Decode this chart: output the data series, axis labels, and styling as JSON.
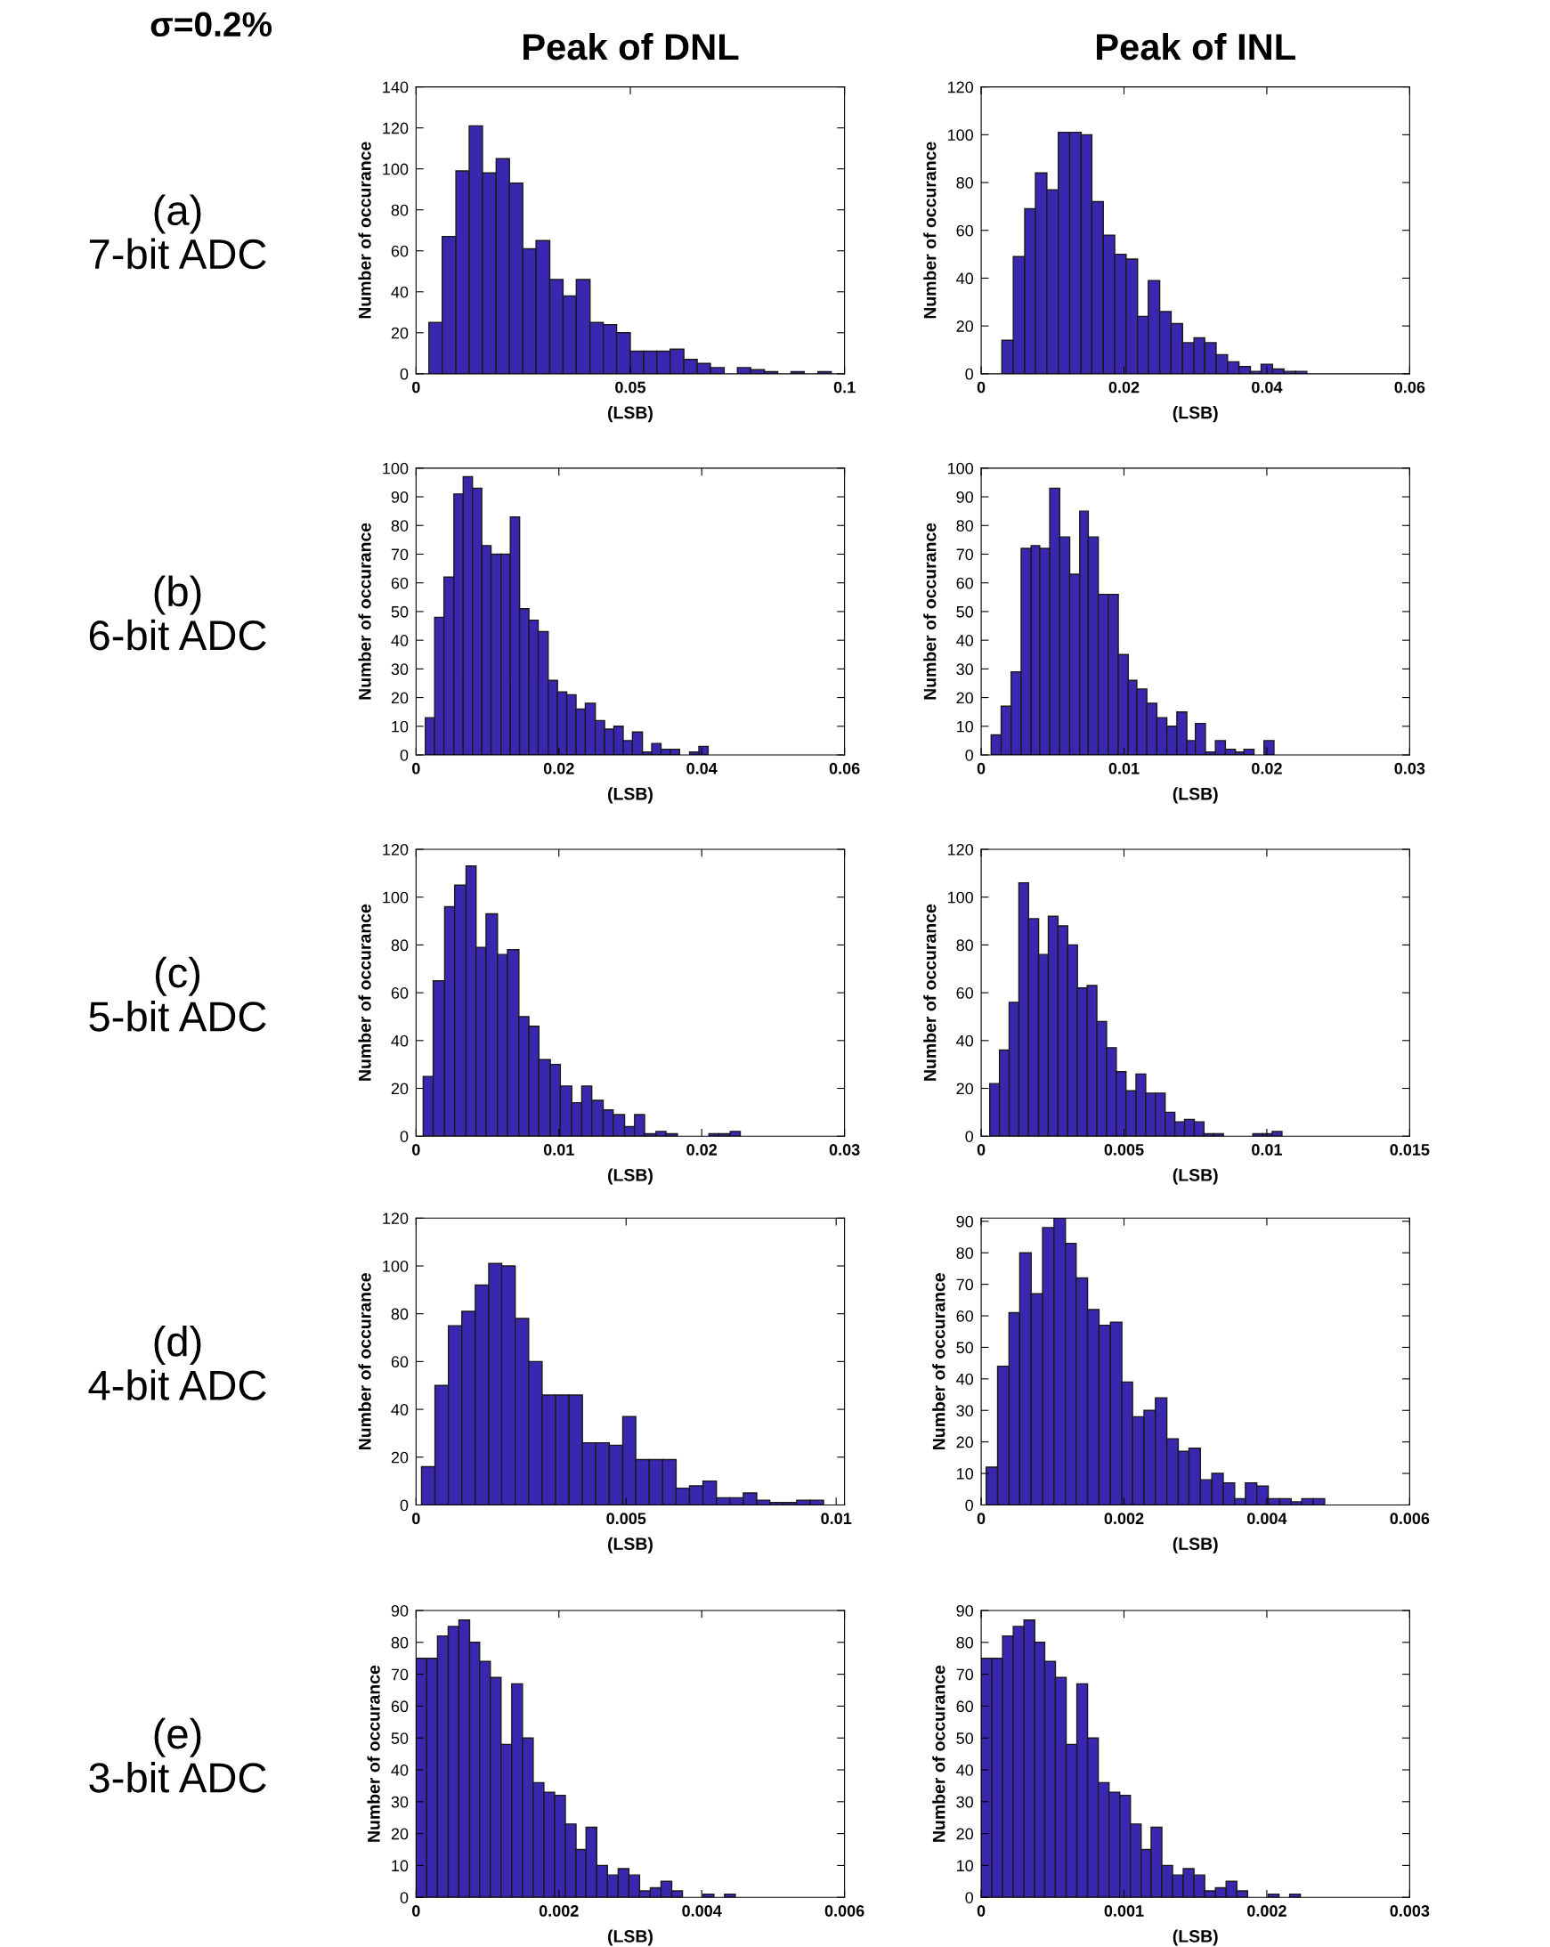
{
  "chart_data": [
    {
      "type": "histogram",
      "title": "Peak of DNL",
      "subtitle": "σ=0.2%",
      "annotations": [
        "(a)\n7-bit ADC"
      ],
      "xlabel": "(LSB)",
      "ylabel": "Number of occurance",
      "color": "#3a27b0",
      "bins": [
        0.003,
        0.0061,
        0.0093,
        0.0124,
        0.0155,
        0.0187,
        0.0218,
        0.0249,
        0.028,
        0.0312,
        0.0343,
        0.0374,
        0.0406,
        0.0437,
        0.0468,
        0.05,
        0.0531,
        0.0562,
        0.0593,
        0.0625,
        0.0656,
        0.0687,
        0.0719,
        0.075,
        0.0781,
        0.0813,
        0.0844,
        0.0875,
        0.0906,
        0.0938,
        0.0969
      ],
      "values": [
        25,
        67,
        99,
        121,
        98,
        105,
        93,
        61,
        65,
        46,
        38,
        46,
        25,
        24,
        20,
        11,
        11,
        11,
        12,
        7,
        5,
        3,
        0,
        3,
        2,
        1,
        0,
        1,
        0,
        1
      ],
      "xlim": [
        0,
        0.1
      ],
      "xticks": [
        0,
        0.05,
        0.1
      ],
      "ylim": [
        0,
        140
      ],
      "yticks": [
        0,
        20,
        40,
        60,
        80,
        100,
        120,
        140
      ],
      "grid": false
    },
    {
      "type": "histogram",
      "title": "Peak of INL",
      "xlabel": "(LSB)",
      "ylabel": "Number of occurance",
      "color": "#3a27b0",
      "bins": [
        0.0029,
        0.0045,
        0.0061,
        0.0076,
        0.0092,
        0.0108,
        0.0124,
        0.014,
        0.0155,
        0.0171,
        0.0187,
        0.0203,
        0.0219,
        0.0234,
        0.025,
        0.0266,
        0.0282,
        0.0298,
        0.0313,
        0.0329,
        0.0345,
        0.0361,
        0.0377,
        0.0392,
        0.0408,
        0.0424,
        0.044,
        0.0456
      ],
      "values": [
        14,
        49,
        69,
        84,
        77,
        101,
        101,
        100,
        72,
        58,
        50,
        48,
        24,
        39,
        26,
        21,
        13,
        15,
        13,
        8,
        5,
        3,
        1,
        4,
        2,
        1,
        1
      ],
      "xlim": [
        0,
        0.06
      ],
      "xticks": [
        0,
        0.02,
        0.04,
        0.06
      ],
      "ylim": [
        0,
        120
      ],
      "yticks": [
        0,
        20,
        40,
        60,
        80,
        100,
        120
      ],
      "grid": false
    },
    {
      "type": "histogram",
      "annotations": [
        "(b)\n6-bit ADC"
      ],
      "xlabel": "(LSB)",
      "ylabel": "Number of occurance",
      "color": "#3a27b0",
      "bins": [
        0.0013,
        0.0026,
        0.0039,
        0.0053,
        0.0066,
        0.0079,
        0.0092,
        0.0105,
        0.0119,
        0.0132,
        0.0145,
        0.0158,
        0.0171,
        0.0185,
        0.0198,
        0.0211,
        0.0224,
        0.0237,
        0.0251,
        0.0264,
        0.0277,
        0.029,
        0.0303,
        0.0317,
        0.033,
        0.0343,
        0.0356,
        0.0369,
        0.0383,
        0.0396,
        0.0409
      ],
      "values": [
        13,
        48,
        62,
        91,
        97,
        93,
        73,
        70,
        70,
        83,
        51,
        47,
        43,
        26,
        22,
        21,
        16,
        18,
        12,
        9,
        10,
        5,
        8,
        1,
        4,
        2,
        2,
        0,
        1,
        3
      ],
      "xlim": [
        0,
        0.06
      ],
      "xticks": [
        0,
        0.02,
        0.04,
        0.06
      ],
      "ylim": [
        0,
        100
      ],
      "yticks": [
        0,
        10,
        20,
        30,
        40,
        50,
        60,
        70,
        80,
        90,
        100
      ],
      "grid": false
    },
    {
      "type": "histogram",
      "xlabel": "(LSB)",
      "ylabel": "Number of occurance",
      "color": "#3a27b0",
      "bins": [
        0.0007,
        0.0014,
        0.0021,
        0.0028,
        0.0035,
        0.0041,
        0.0048,
        0.0055,
        0.0062,
        0.0069,
        0.0075,
        0.0082,
        0.0089,
        0.0096,
        0.0103,
        0.0109,
        0.0116,
        0.0123,
        0.013,
        0.0137,
        0.0144,
        0.015,
        0.0157,
        0.0164,
        0.0171,
        0.0178,
        0.0184,
        0.0191,
        0.0198,
        0.0205
      ],
      "values": [
        7,
        17,
        29,
        72,
        73,
        72,
        93,
        76,
        63,
        85,
        76,
        56,
        56,
        35,
        26,
        23,
        18,
        13,
        10,
        15,
        5,
        11,
        1,
        5,
        2,
        1,
        2,
        0,
        5
      ],
      "xlim": [
        0,
        0.03
      ],
      "xticks": [
        0,
        0.01,
        0.02,
        0.03
      ],
      "ylim": [
        0,
        100
      ],
      "yticks": [
        0,
        10,
        20,
        30,
        40,
        50,
        60,
        70,
        80,
        90,
        100
      ],
      "grid": false
    },
    {
      "type": "histogram",
      "annotations": [
        "(c)\n5-bit ADC"
      ],
      "xlabel": "(LSB)",
      "ylabel": "Number of occurance",
      "color": "#3a27b0",
      "bins": [
        0.0005,
        0.0012,
        0.002,
        0.0027,
        0.0035,
        0.0042,
        0.0049,
        0.0057,
        0.0064,
        0.0072,
        0.0079,
        0.0086,
        0.0094,
        0.0101,
        0.0109,
        0.0116,
        0.0123,
        0.0131,
        0.0138,
        0.0146,
        0.0153,
        0.016,
        0.0168,
        0.0175,
        0.0183,
        0.0205,
        0.0212,
        0.022,
        0.0227
      ],
      "values": [
        25,
        65,
        96,
        105,
        113,
        79,
        93,
        76,
        78,
        50,
        46,
        32,
        30,
        21,
        14,
        21,
        15,
        11,
        9,
        4,
        9,
        1,
        2,
        1,
        0,
        1,
        1,
        2
      ],
      "xlim": [
        0,
        0.03
      ],
      "xticks": [
        0,
        0.01,
        0.02,
        0.03
      ],
      "ylim": [
        0,
        120
      ],
      "yticks": [
        0,
        20,
        40,
        60,
        80,
        100,
        120
      ],
      "grid": false
    },
    {
      "type": "histogram",
      "xlabel": "(LSB)",
      "ylabel": "Number of occurance",
      "color": "#3a27b0",
      "bins": [
        0.0003,
        0.00064,
        0.00098,
        0.00132,
        0.00166,
        0.00201,
        0.00235,
        0.00269,
        0.00303,
        0.00337,
        0.00371,
        0.00405,
        0.00439,
        0.00473,
        0.00507,
        0.00542,
        0.00576,
        0.0061,
        0.00644,
        0.00678,
        0.00712,
        0.00746,
        0.0078,
        0.00814,
        0.00848,
        0.00951,
        0.00985,
        0.01019,
        0.01053
      ],
      "values": [
        22,
        36,
        56,
        106,
        91,
        76,
        92,
        88,
        80,
        62,
        63,
        48,
        37,
        27,
        19,
        26,
        18,
        18,
        10,
        6,
        7,
        6,
        1,
        1,
        0,
        1,
        1,
        2
      ],
      "xlim": [
        0,
        0.015
      ],
      "xticks": [
        0,
        0.005,
        0.01,
        0.015
      ],
      "ylim": [
        0,
        120
      ],
      "yticks": [
        0,
        20,
        40,
        60,
        80,
        100,
        120
      ],
      "grid": false
    },
    {
      "type": "histogram",
      "annotations": [
        "(d)\n4-bit ADC"
      ],
      "xlabel": "(LSB)",
      "ylabel": "Number of occurance",
      "color": "#3a27b0",
      "bins": [
        0.00013,
        0.00045,
        0.00077,
        0.00109,
        0.00141,
        0.00173,
        0.00204,
        0.00236,
        0.00268,
        0.003,
        0.00332,
        0.00364,
        0.00396,
        0.00428,
        0.0046,
        0.00492,
        0.00523,
        0.00555,
        0.00587,
        0.00619,
        0.00651,
        0.00683,
        0.00715,
        0.00747,
        0.00779,
        0.00811,
        0.00842,
        0.00874,
        0.00906,
        0.00938,
        0.0097
      ],
      "values": [
        16,
        50,
        75,
        81,
        92,
        101,
        100,
        78,
        60,
        46,
        46,
        46,
        26,
        26,
        25,
        37,
        19,
        19,
        19,
        7,
        8,
        10,
        3,
        3,
        5,
        2,
        1,
        1,
        2,
        2
      ],
      "xlim": [
        0,
        0.0102
      ],
      "xticks": [
        0,
        0.005,
        0.01
      ],
      "ylim": [
        0,
        120
      ],
      "yticks": [
        0,
        20,
        40,
        60,
        80,
        100,
        120
      ],
      "grid": false
    },
    {
      "type": "histogram",
      "xlabel": "(LSB)",
      "ylabel": "Number of occurance",
      "color": "#3a27b0",
      "bins": [
        7e-05,
        0.00023,
        0.00039,
        0.00054,
        0.0007,
        0.00086,
        0.00102,
        0.00118,
        0.00133,
        0.00149,
        0.00165,
        0.00181,
        0.00197,
        0.00212,
        0.00228,
        0.00244,
        0.0026,
        0.00276,
        0.00291,
        0.00307,
        0.00323,
        0.00339,
        0.00355,
        0.0037,
        0.00386,
        0.00402,
        0.00418,
        0.00434,
        0.00449,
        0.00465,
        0.00481
      ],
      "values": [
        12,
        44,
        61,
        80,
        67,
        88,
        91,
        83,
        72,
        62,
        57,
        58,
        39,
        28,
        30,
        34,
        21,
        17,
        18,
        8,
        10,
        7,
        2,
        7,
        6,
        2,
        2,
        1,
        2,
        2
      ],
      "xlim": [
        0,
        0.006
      ],
      "xticks": [
        0,
        0.002,
        0.004,
        0.006
      ],
      "ylim": [
        0,
        91
      ],
      "yticks": [
        0,
        10,
        20,
        30,
        40,
        50,
        60,
        70,
        80,
        90
      ],
      "grid": false
    },
    {
      "type": "histogram",
      "annotations": [
        "(e)\n3-bit ADC"
      ],
      "xlabel": "(LSB)",
      "ylabel": "Number of occurance",
      "color": "#3a27b0",
      "bins": [
        0,
        0.00015,
        0.0003,
        0.00045,
        0.0006,
        0.00075,
        0.00089,
        0.00104,
        0.00119,
        0.00134,
        0.00149,
        0.00164,
        0.00179,
        0.00194,
        0.00209,
        0.00224,
        0.00238,
        0.00253,
        0.00268,
        0.00283,
        0.00298,
        0.00313,
        0.00328,
        0.00343,
        0.00358,
        0.00373,
        0.00402,
        0.00417,
        0.00432,
        0.00447
      ],
      "values": [
        75,
        75,
        82,
        85,
        87,
        80,
        74,
        69,
        48,
        67,
        50,
        36,
        33,
        32,
        23,
        15,
        22,
        10,
        7,
        9,
        7,
        2,
        3,
        5,
        2,
        0,
        1,
        0,
        1
      ],
      "xlim": [
        0,
        0.006
      ],
      "xticks": [
        0,
        0.002,
        0.004,
        0.006
      ],
      "ylim": [
        0,
        90
      ],
      "yticks": [
        0,
        10,
        20,
        30,
        40,
        50,
        60,
        70,
        80,
        90
      ],
      "grid": false
    },
    {
      "type": "histogram",
      "xlabel": "(LSB)",
      "ylabel": "Number of occurance",
      "color": "#3a27b0",
      "bins": [
        0,
        7.5e-05,
        0.00015,
        0.000225,
        0.0003,
        0.000375,
        0.000445,
        0.00052,
        0.000595,
        0.00067,
        0.000745,
        0.00082,
        0.000895,
        0.00097,
        0.001045,
        0.00112,
        0.00119,
        0.001265,
        0.00134,
        0.001415,
        0.00149,
        0.001565,
        0.00164,
        0.001715,
        0.00179,
        0.001865,
        0.00201,
        0.002085,
        0.00216,
        0.002235
      ],
      "values": [
        75,
        75,
        82,
        85,
        87,
        80,
        74,
        69,
        48,
        67,
        50,
        36,
        33,
        32,
        23,
        15,
        22,
        10,
        7,
        9,
        7,
        2,
        3,
        5,
        2,
        0,
        1,
        0,
        1
      ],
      "xlim": [
        0,
        0.003
      ],
      "xticks": [
        0,
        0.001,
        0.002,
        0.003
      ],
      "ylim": [
        0,
        90
      ],
      "yticks": [
        0,
        10,
        20,
        30,
        40,
        50,
        60,
        70,
        80,
        90
      ],
      "grid": false
    }
  ]
}
